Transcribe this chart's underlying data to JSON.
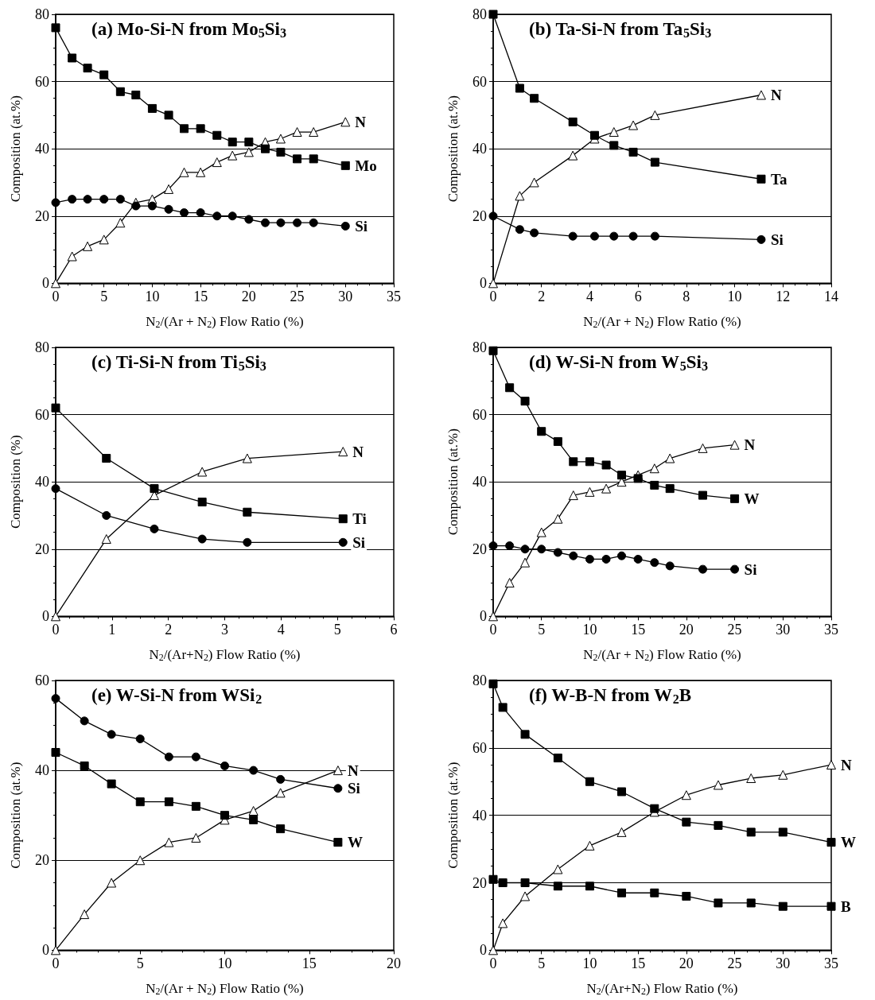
{
  "chart_data": [
    {
      "type": "line",
      "title": "(a) Mo-Si-N from Mo$_{5}$Si$_{3}$",
      "xlabel": "N$_{2}$/(Ar + N$_{2}$) Flow Ratio (%)",
      "ylabel": "Composition (at.%)",
      "xlim": [
        0,
        35
      ],
      "xticks": [
        0,
        5,
        10,
        15,
        20,
        25,
        30,
        35
      ],
      "ylim": [
        0,
        80
      ],
      "yticks": [
        0,
        20,
        40,
        60,
        80
      ],
      "grid": "y",
      "line_style": "solid",
      "x": [
        0,
        1.7,
        3.3,
        5,
        6.7,
        8.3,
        10,
        11.7,
        13.3,
        15,
        16.7,
        18.3,
        20,
        21.7,
        23.3,
        25,
        26.7,
        30
      ],
      "series": [
        {
          "name": "N",
          "color": "#000000",
          "marker": "triangle",
          "values": [
            0,
            8,
            11,
            13,
            18,
            24,
            25,
            28,
            33,
            33,
            36,
            38,
            39,
            42,
            43,
            45,
            45,
            48
          ]
        },
        {
          "name": "Mo",
          "color": "#000000",
          "marker": "square",
          "values": [
            76,
            67,
            64,
            62,
            57,
            56,
            52,
            50,
            46,
            46,
            44,
            42,
            42,
            40,
            39,
            37,
            37,
            35
          ]
        },
        {
          "name": "Si",
          "color": "#000000",
          "marker": "circle",
          "values": [
            24,
            25,
            25,
            25,
            25,
            23,
            23,
            22,
            21,
            21,
            20,
            20,
            19,
            18,
            18,
            18,
            18,
            17
          ]
        }
      ]
    },
    {
      "type": "line",
      "title": "(b) Ta-Si-N from Ta$_{5}$Si$_{3}$",
      "xlabel": "N$_{2}$/(Ar + N$_{2}$) Flow Ratio (%)",
      "ylabel": "Composition (at.%)",
      "xlim": [
        0,
        14
      ],
      "xticks": [
        0,
        2,
        4,
        6,
        8,
        10,
        12,
        14
      ],
      "ylim": [
        0,
        80
      ],
      "yticks": [
        0,
        20,
        40,
        60,
        80
      ],
      "grid": "y",
      "line_style": "solid",
      "x": [
        0,
        1.1,
        1.7,
        3.3,
        4.2,
        5,
        5.8,
        6.7,
        11.1
      ],
      "series": [
        {
          "name": "N",
          "color": "#000000",
          "marker": "triangle",
          "values": [
            0,
            26,
            30,
            38,
            43,
            45,
            47,
            50,
            56
          ]
        },
        {
          "name": "Ta",
          "color": "#000000",
          "marker": "square",
          "values": [
            80,
            58,
            55,
            48,
            44,
            41,
            39,
            36,
            31
          ]
        },
        {
          "name": "Si",
          "color": "#000000",
          "marker": "circle",
          "values": [
            20,
            16,
            15,
            14,
            14,
            14,
            14,
            14,
            13
          ]
        }
      ]
    },
    {
      "type": "line",
      "title": "(c) Ti-Si-N from Ti$_{5}$Si$_{3}$",
      "xlabel": "N$_{2}$/(Ar+N$_{2}$) Flow Ratio (%)",
      "ylabel": "Composition (%)",
      "xlim": [
        0,
        6
      ],
      "xticks": [
        0,
        1,
        2,
        3,
        4,
        5,
        6
      ],
      "ylim": [
        0,
        80
      ],
      "yticks": [
        0,
        20,
        40,
        60,
        80
      ],
      "grid": "y",
      "line_style": "solid",
      "x": [
        0,
        0.9,
        1.75,
        2.6,
        3.4,
        5.1
      ],
      "series": [
        {
          "name": "N",
          "color": "#000000",
          "marker": "triangle",
          "values": [
            0,
            23,
            36,
            43,
            47,
            49
          ]
        },
        {
          "name": "Ti",
          "color": "#000000",
          "marker": "square",
          "values": [
            62,
            47,
            38,
            34,
            31,
            29
          ]
        },
        {
          "name": "Si",
          "color": "#000000",
          "marker": "circle",
          "values": [
            38,
            30,
            26,
            23,
            22,
            22
          ]
        }
      ]
    },
    {
      "type": "line",
      "title": "(d) W-Si-N from W$_{5}$Si$_{3}$",
      "xlabel": "N$_{2}$/(Ar + N$_{2}$) Flow Ratio (%)",
      "ylabel": "Composition (at.%)",
      "xlim": [
        0,
        35
      ],
      "xticks": [
        0,
        5,
        10,
        15,
        20,
        25,
        30,
        35
      ],
      "ylim": [
        0,
        80
      ],
      "yticks": [
        0,
        20,
        40,
        60,
        80
      ],
      "grid": "y",
      "line_style": "solid",
      "x": [
        0,
        1.7,
        3.3,
        5,
        6.7,
        8.3,
        10,
        11.7,
        13.3,
        15,
        16.7,
        18.3,
        21.7,
        25
      ],
      "series": [
        {
          "name": "N",
          "color": "#000000",
          "marker": "triangle",
          "values": [
            0,
            10,
            16,
            25,
            29,
            36,
            37,
            38,
            40,
            42,
            44,
            47,
            50,
            51
          ]
        },
        {
          "name": "W",
          "color": "#000000",
          "marker": "square",
          "values": [
            79,
            68,
            64,
            55,
            52,
            46,
            46,
            45,
            42,
            41,
            39,
            38,
            36,
            35
          ]
        },
        {
          "name": "Si",
          "color": "#000000",
          "marker": "circle",
          "values": [
            21,
            21,
            20,
            20,
            19,
            18,
            17,
            17,
            18,
            17,
            16,
            15,
            14,
            14
          ]
        }
      ]
    },
    {
      "type": "line",
      "title": "(e) W-Si-N from WSi$_{2}$",
      "xlabel": "N$_{2}$/(Ar + N$_{2}$) Flow Ratio (%)",
      "ylabel": "Composition (at.%)",
      "xlim": [
        0,
        20
      ],
      "xticks": [
        0,
        5,
        10,
        15,
        20
      ],
      "ylim": [
        0,
        60
      ],
      "yticks": [
        0,
        20,
        40,
        60
      ],
      "grid": "y",
      "line_style": "solid",
      "x": [
        0,
        1.7,
        3.3,
        5,
        6.7,
        8.3,
        10,
        11.7,
        13.3,
        16.7
      ],
      "series": [
        {
          "name": "N",
          "color": "#000000",
          "marker": "triangle",
          "values": [
            0,
            8,
            15,
            20,
            24,
            25,
            29,
            31,
            35,
            40
          ]
        },
        {
          "name": "Si",
          "color": "#000000",
          "marker": "circle",
          "values": [
            56,
            51,
            48,
            47,
            43,
            43,
            41,
            40,
            38,
            36
          ]
        },
        {
          "name": "W",
          "color": "#000000",
          "marker": "square",
          "values": [
            44,
            41,
            37,
            33,
            33,
            32,
            30,
            29,
            27,
            24
          ]
        }
      ]
    },
    {
      "type": "line",
      "title": "(f) W-B-N from W$_{2}$B",
      "xlabel": "N$_{2}$/(Ar+N$_{2}$) Flow Ratio (%)",
      "ylabel": "Composition (at.%)",
      "xlim": [
        0,
        35
      ],
      "xticks": [
        0,
        5,
        10,
        15,
        20,
        25,
        30,
        35
      ],
      "ylim": [
        0,
        80
      ],
      "yticks": [
        0,
        20,
        40,
        60,
        80
      ],
      "grid": "y",
      "line_style": "solid",
      "x": [
        0,
        1,
        3.3,
        6.7,
        10,
        13.3,
        16.7,
        20,
        23.3,
        26.7,
        30,
        35
      ],
      "series": [
        {
          "name": "N",
          "color": "#000000",
          "marker": "triangle",
          "values": [
            0,
            8,
            16,
            24,
            31,
            35,
            41,
            46,
            49,
            51,
            52,
            55
          ]
        },
        {
          "name": "W",
          "color": "#000000",
          "marker": "square",
          "values": [
            79,
            72,
            64,
            57,
            50,
            47,
            42,
            38,
            37,
            35,
            35,
            32
          ]
        },
        {
          "name": "B",
          "color": "#000000",
          "marker": "square",
          "values": [
            21,
            20,
            20,
            19,
            19,
            17,
            17,
            16,
            14,
            14,
            13,
            13
          ]
        }
      ]
    }
  ]
}
